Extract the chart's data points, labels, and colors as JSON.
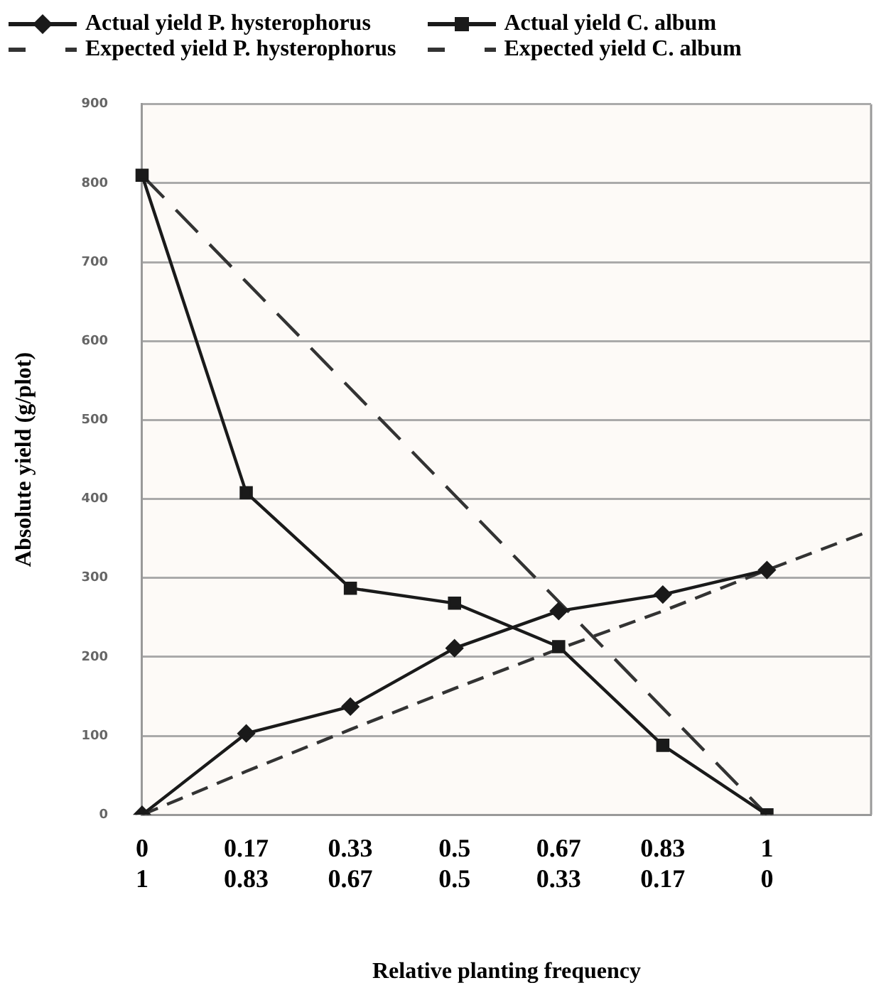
{
  "chart_data": {
    "type": "line",
    "xlabel": "Relative planting frequency",
    "ylabel": "Absolute yield (g/plot)",
    "categories": [
      "0\n1",
      "0.17\n0.83",
      "0.33\n0.67",
      "0.5\n0.5",
      "0.67\n0.33",
      "0.83\n0.17",
      "1\n0",
      null
    ],
    "ylim": [
      0,
      900
    ],
    "yticks": [
      0,
      100,
      200,
      300,
      400,
      500,
      600,
      700,
      800,
      900
    ],
    "grid": "y",
    "legend": "top",
    "series": [
      {
        "name": "Actual yield P. hysterophorus",
        "color": "#1a1a1a",
        "marker": "diamond",
        "line_style": "solid",
        "values": [
          0,
          103,
          137,
          211,
          258,
          279,
          310,
          null
        ]
      },
      {
        "name": "Actual yield C. album",
        "color": "#1a1a1a",
        "marker": "square",
        "line_style": "solid",
        "values": [
          810,
          408,
          287,
          268,
          213,
          88,
          0,
          null
        ]
      },
      {
        "name": "Expected yield P. hysterophorus",
        "color": "#333333",
        "marker": "none",
        "line_style": "dashed",
        "values": [
          0,
          55,
          108,
          160,
          210,
          258,
          310,
          360
        ]
      },
      {
        "name": "Expected yield C. album",
        "color": "#333333",
        "marker": "none",
        "line_style": "dashed",
        "values": [
          810,
          675,
          540,
          405,
          270,
          135,
          0,
          null
        ]
      }
    ]
  }
}
